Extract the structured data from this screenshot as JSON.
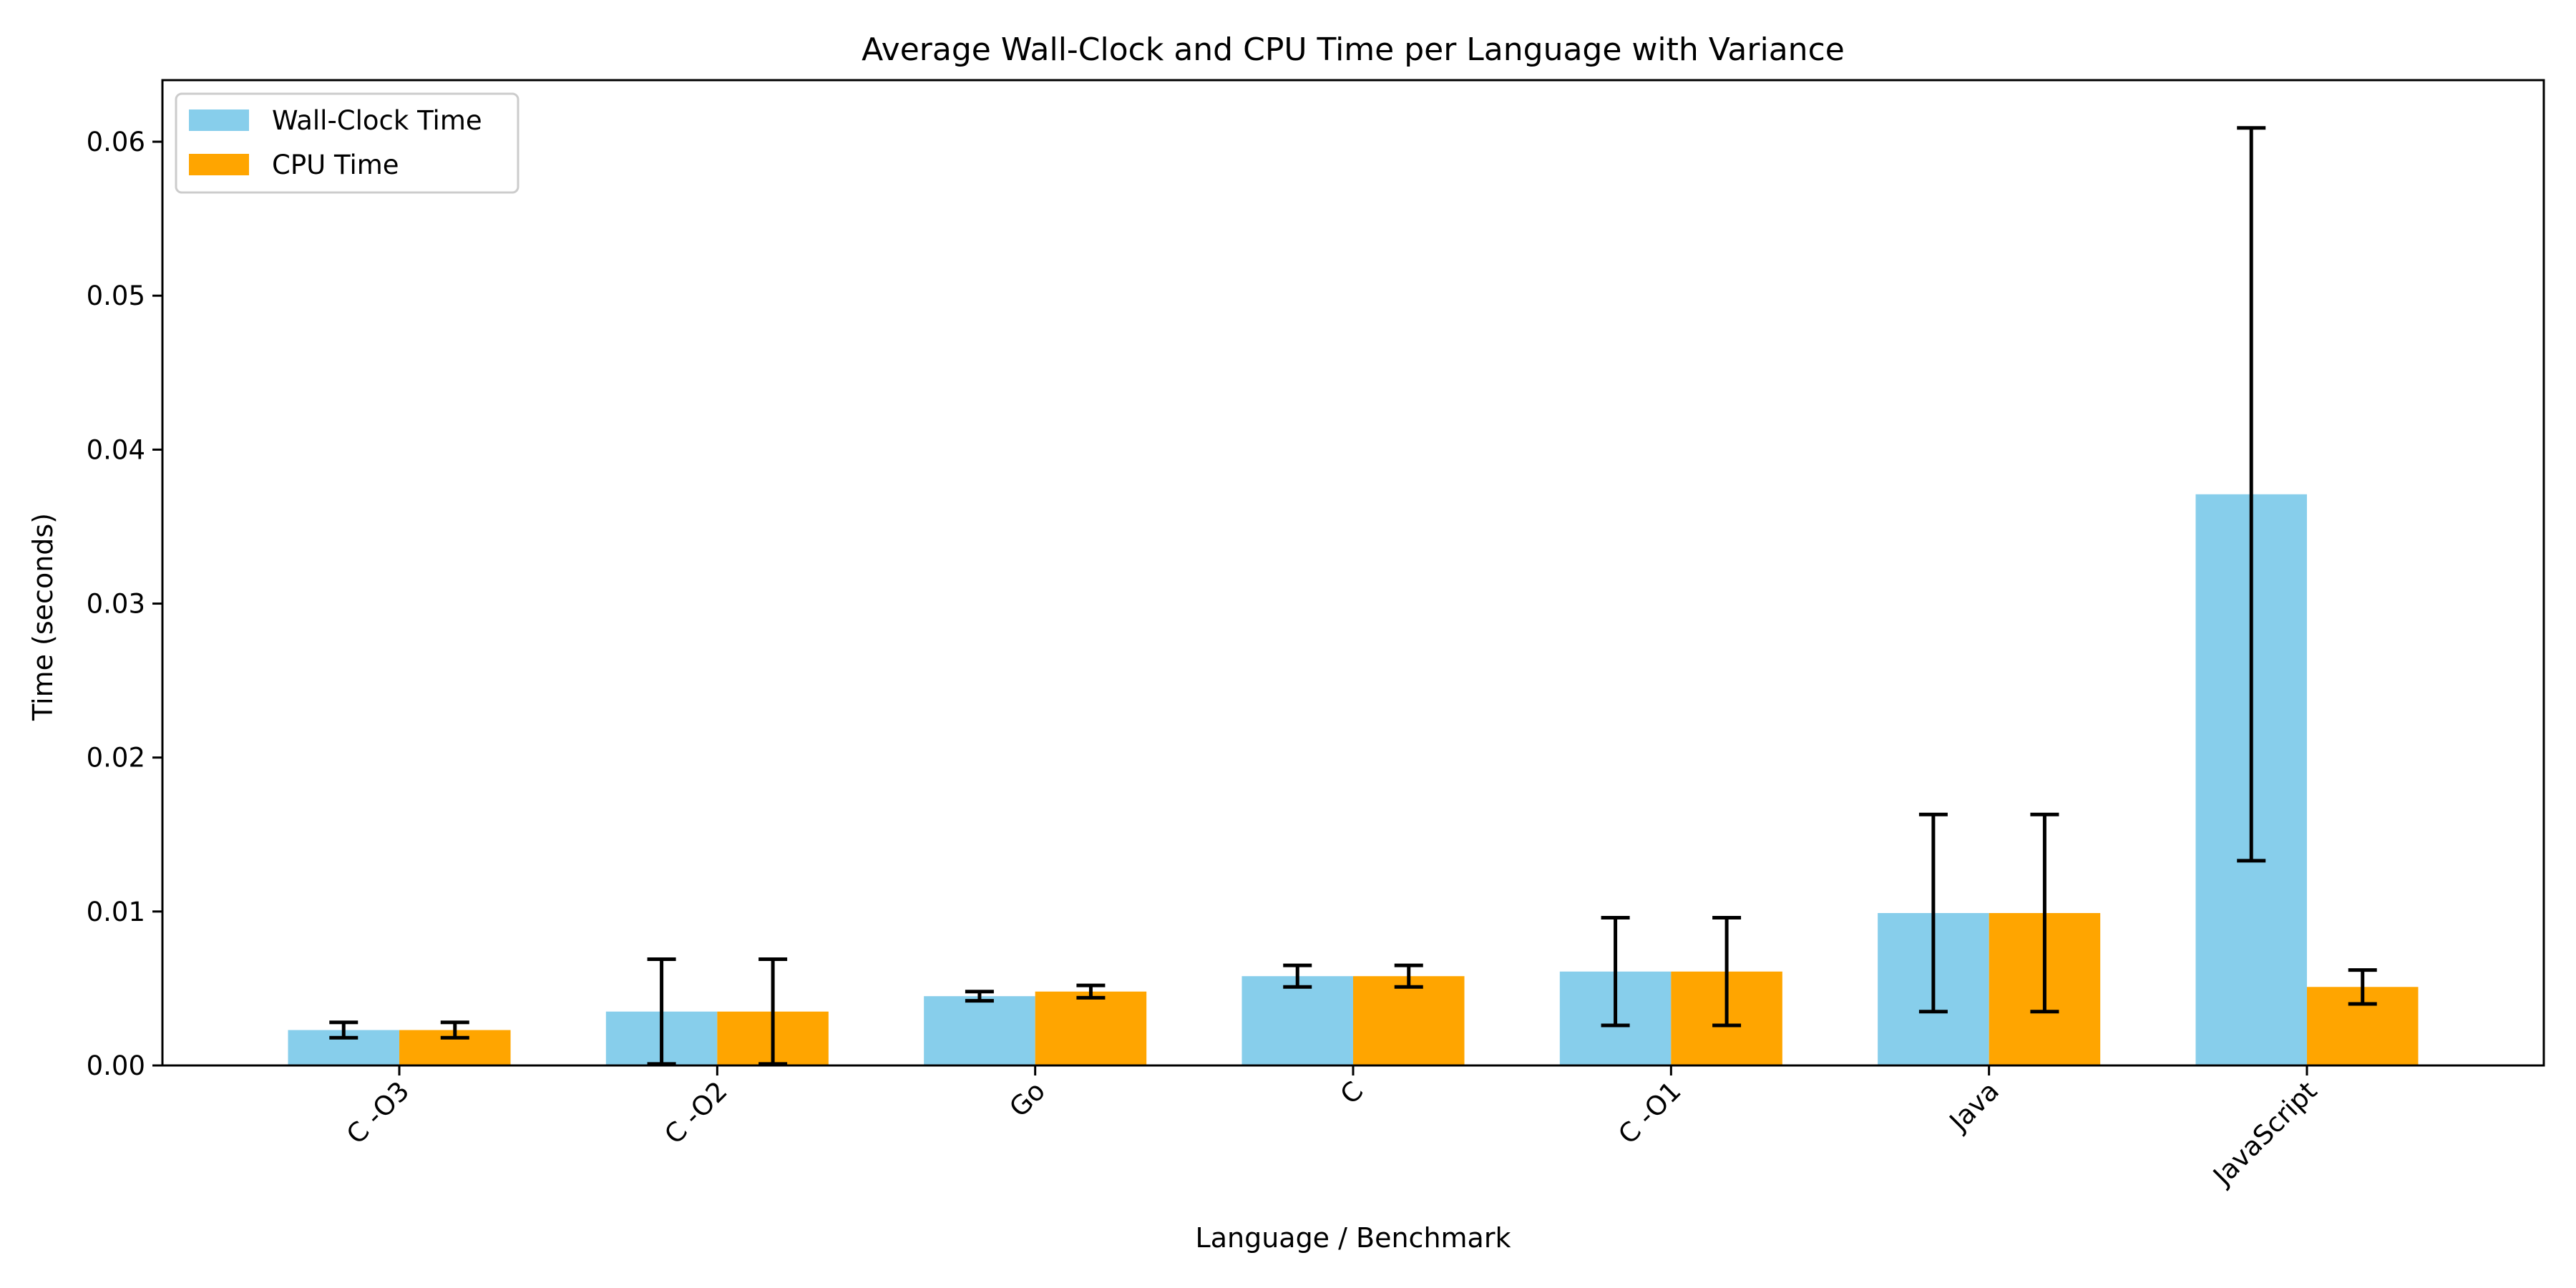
{
  "chart_data": {
    "type": "bar",
    "title": "Average Wall-Clock and CPU Time per Language with Variance",
    "xlabel": "Language / Benchmark",
    "ylabel": "Time (seconds)",
    "ylim": [
      0,
      0.064
    ],
    "yticks": [
      "0.00",
      "0.01",
      "0.02",
      "0.03",
      "0.04",
      "0.05",
      "0.06"
    ],
    "grid": false,
    "legend_position": "top-left",
    "categories": [
      "C -O3",
      "C -O2",
      "Go",
      "C",
      "C -O1",
      "Java",
      "JavaScript"
    ],
    "series": [
      {
        "name": "Wall-Clock Time",
        "color": "#87CEEB",
        "values": [
          0.0023,
          0.0035,
          0.0045,
          0.0058,
          0.0061,
          0.0099,
          0.0371
        ],
        "error": [
          0.0005,
          0.0034,
          0.0003,
          0.0007,
          0.0035,
          0.0064,
          0.0238
        ]
      },
      {
        "name": "CPU Time",
        "color": "#FFA500",
        "values": [
          0.0023,
          0.0035,
          0.0048,
          0.0058,
          0.0061,
          0.0099,
          0.0051
        ],
        "error": [
          0.0005,
          0.0034,
          0.0004,
          0.0007,
          0.0035,
          0.0064,
          0.0011
        ]
      }
    ]
  }
}
